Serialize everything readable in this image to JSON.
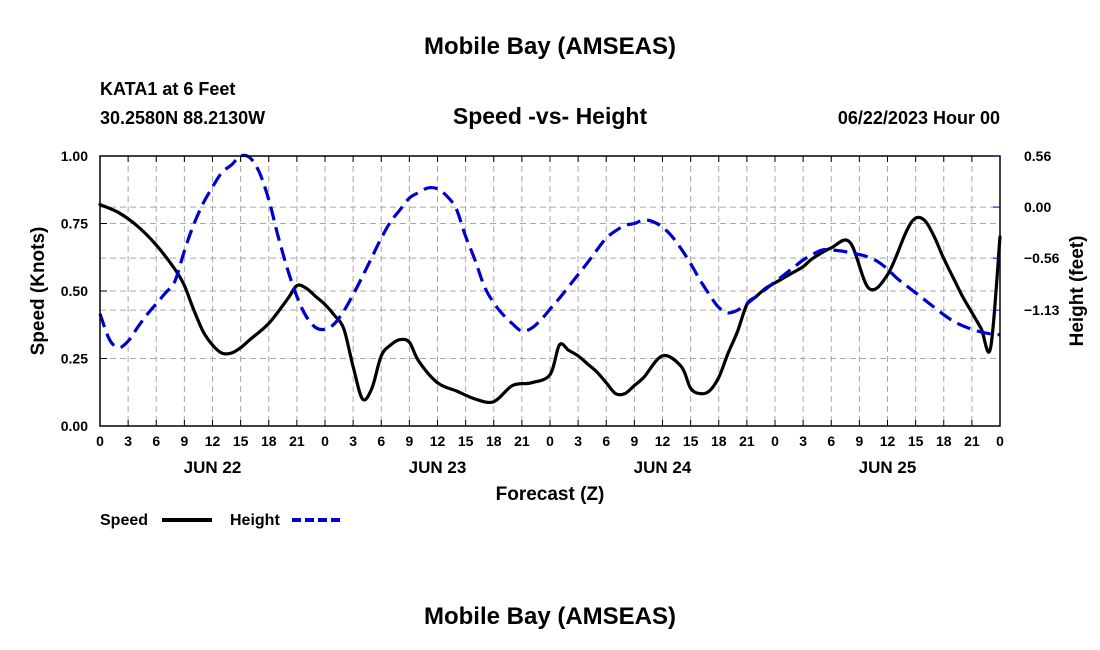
{
  "page": {
    "title": "Mobile Bay (AMSEAS)",
    "footer_title": "Mobile Bay (AMSEAS)",
    "station": "KATA1 at 6 Feet",
    "coords": "30.2580N  88.2130W",
    "datetime": "06/22/2023 Hour 00"
  },
  "chart_data": {
    "type": "line",
    "title": "Speed -vs- Height",
    "xlabel": "Forecast (Z)",
    "ylabel_left": "Speed (Knots)",
    "ylabel_right": "Height (feet)",
    "x_unit": "forecast hour from 06/22/2023 00Z",
    "x_range": [
      0,
      96
    ],
    "x_tick_step": 3,
    "x_tick_labels": [
      "0",
      "3",
      "6",
      "9",
      "12",
      "15",
      "18",
      "21",
      "0",
      "3",
      "6",
      "9",
      "12",
      "15",
      "18",
      "21",
      "0",
      "3",
      "6",
      "9",
      "12",
      "15",
      "18",
      "21",
      "0",
      "3",
      "6",
      "9",
      "12",
      "15",
      "18",
      "21",
      "0"
    ],
    "day_labels": [
      {
        "label": "JUN 22",
        "hour": 12
      },
      {
        "label": "JUN 23",
        "hour": 36
      },
      {
        "label": "JUN 24",
        "hour": 60
      },
      {
        "label": "JUN 25",
        "hour": 84
      }
    ],
    "ylim_left": [
      0,
      1.0
    ],
    "yticks_left": [
      "0.00",
      "0.25",
      "0.50",
      "0.75",
      "1.00"
    ],
    "ylim_right": [
      -2.4,
      0.56
    ],
    "yticks_right": [
      {
        "label": "0.56",
        "value": 0.56
      },
      {
        "label": "0.00",
        "value": 0.0
      },
      {
        "label": "−0.56",
        "value": -0.56
      },
      {
        "label": "−1.13",
        "value": -1.13
      }
    ],
    "grid": true,
    "legend_position": "bottom-left",
    "series": [
      {
        "name": "Speed",
        "axis": "left",
        "color": "#000000",
        "style": "solid",
        "x": [
          0,
          2,
          4,
          6,
          8,
          9,
          10,
          11,
          12,
          13,
          14,
          15,
          16,
          18,
          20,
          21,
          22,
          23,
          24,
          25,
          26,
          27,
          28,
          29,
          30,
          31,
          32,
          33,
          34,
          36,
          38,
          40,
          42,
          44,
          46,
          48,
          49,
          50,
          51,
          52,
          53,
          54,
          55,
          56,
          57,
          58,
          60,
          62,
          63,
          64,
          65,
          66,
          67,
          68,
          69,
          70,
          71,
          72,
          73,
          74,
          75,
          76,
          78,
          80,
          82,
          84,
          86,
          87,
          88,
          89,
          90,
          91,
          92,
          93,
          94,
          95,
          96
        ],
        "values": [
          0.82,
          0.79,
          0.74,
          0.67,
          0.58,
          0.52,
          0.43,
          0.35,
          0.3,
          0.27,
          0.27,
          0.29,
          0.32,
          0.38,
          0.47,
          0.52,
          0.51,
          0.48,
          0.45,
          0.41,
          0.36,
          0.22,
          0.1,
          0.14,
          0.26,
          0.3,
          0.32,
          0.31,
          0.24,
          0.16,
          0.13,
          0.1,
          0.09,
          0.15,
          0.16,
          0.19,
          0.3,
          0.28,
          0.26,
          0.23,
          0.2,
          0.16,
          0.12,
          0.12,
          0.15,
          0.18,
          0.26,
          0.22,
          0.14,
          0.12,
          0.13,
          0.18,
          0.27,
          0.35,
          0.45,
          0.48,
          0.51,
          0.53,
          0.55,
          0.57,
          0.59,
          0.62,
          0.66,
          0.68,
          0.51,
          0.56,
          0.72,
          0.77,
          0.76,
          0.7,
          0.62,
          0.55,
          0.48,
          0.42,
          0.36,
          0.29,
          0.7
        ]
      },
      {
        "name": "Height",
        "axis": "right",
        "color": "#0000cc",
        "style": "dashed",
        "x": [
          0,
          1,
          2,
          3,
          4,
          5,
          6,
          7,
          8,
          9,
          10,
          11,
          12,
          13,
          14,
          15,
          16,
          17,
          18,
          19,
          20,
          21,
          22,
          23,
          24,
          25,
          26,
          27,
          28,
          29,
          30,
          31,
          32,
          33,
          34,
          35,
          36,
          37,
          38,
          39,
          40,
          41,
          42,
          43,
          44,
          45,
          46,
          47,
          48,
          49,
          50,
          51,
          52,
          53,
          54,
          55,
          56,
          57,
          58,
          59,
          60,
          61,
          62,
          63,
          64,
          65,
          66,
          67,
          68,
          69,
          70,
          71,
          72,
          73,
          74,
          75,
          76,
          77,
          78,
          79,
          80,
          81,
          82,
          83,
          84,
          85,
          86,
          87,
          88,
          89,
          90,
          91,
          92,
          93,
          94,
          95,
          96
        ],
        "values": [
          -1.17,
          -1.45,
          -1.54,
          -1.47,
          -1.32,
          -1.18,
          -1.06,
          -0.94,
          -0.81,
          -0.48,
          -0.19,
          0.04,
          0.22,
          0.38,
          0.46,
          0.56,
          0.54,
          0.38,
          0.08,
          -0.32,
          -0.68,
          -0.98,
          -1.2,
          -1.32,
          -1.34,
          -1.28,
          -1.14,
          -0.96,
          -0.76,
          -0.55,
          -0.34,
          -0.16,
          -0.03,
          0.1,
          0.16,
          0.21,
          0.2,
          0.12,
          -0.02,
          -0.32,
          -0.58,
          -0.87,
          -1.05,
          -1.18,
          -1.28,
          -1.36,
          -1.33,
          -1.24,
          -1.12,
          -1.0,
          -0.87,
          -0.74,
          -0.61,
          -0.47,
          -0.34,
          -0.26,
          -0.2,
          -0.18,
          -0.14,
          -0.16,
          -0.22,
          -0.32,
          -0.46,
          -0.62,
          -0.8,
          -0.96,
          -1.1,
          -1.16,
          -1.13,
          -1.06,
          -0.98,
          -0.9,
          -0.82,
          -0.74,
          -0.66,
          -0.58,
          -0.52,
          -0.47,
          -0.47,
          -0.48,
          -0.5,
          -0.52,
          -0.55,
          -0.6,
          -0.68,
          -0.78,
          -0.86,
          -0.94,
          -1.02,
          -1.1,
          -1.18,
          -1.25,
          -1.3,
          -1.34,
          -1.37,
          -1.39,
          -1.4
        ]
      }
    ]
  },
  "legend": {
    "speed_label": "Speed",
    "height_label": "Height"
  }
}
